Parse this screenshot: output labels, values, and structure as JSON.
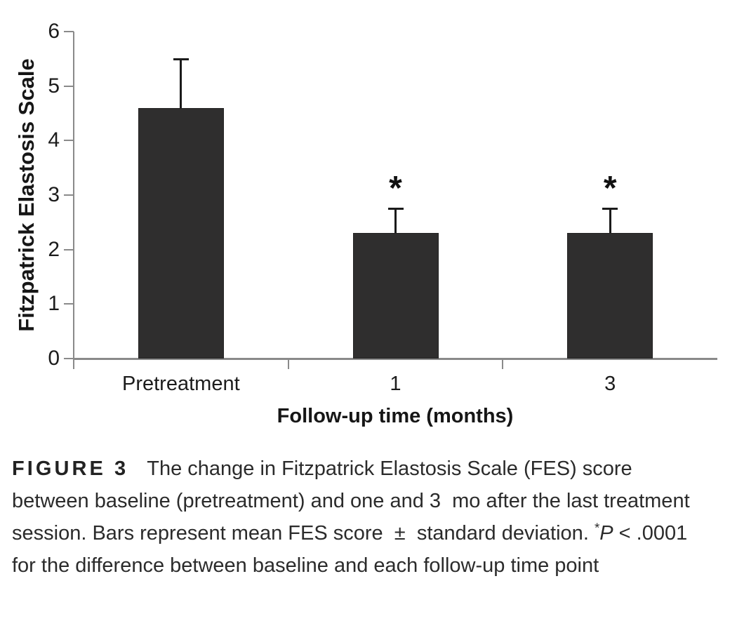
{
  "caption": {
    "label": "FIGURE 3",
    "text_part1": "The change in Fitzpatrick Elastosis Scale (FES) score between baseline (pretreatment) and one and 3  mo after the last treatment session. Bars represent mean FES score  ±  standard deviation. ",
    "asterisk": "*",
    "p_symbol": "P",
    "text_part2": " < .0001 for the difference between baseline and each follow-up time point"
  },
  "chart_data": {
    "type": "bar",
    "title": "",
    "categories": [
      "Pretreatment",
      "1",
      "3"
    ],
    "values": [
      4.6,
      2.3,
      2.3
    ],
    "error_up": [
      0.9,
      0.45,
      0.45
    ],
    "significant": [
      false,
      true,
      true
    ],
    "significance_marker": "*",
    "xlabel": "Follow-up time (months)",
    "ylabel": "Fitzpatrick Elastosis Scale",
    "ylim": [
      0,
      6
    ],
    "ytick_step": 1,
    "yticks": [
      0,
      1,
      2,
      3,
      4,
      5,
      6
    ],
    "grid": false,
    "legend": null,
    "bar_color_hex": "#2f2e2e",
    "axis_color_hex": "#8a8a8a",
    "error_bar_color_hex": "#1b1b1b",
    "text_color_hex": "#1c1c1c"
  }
}
